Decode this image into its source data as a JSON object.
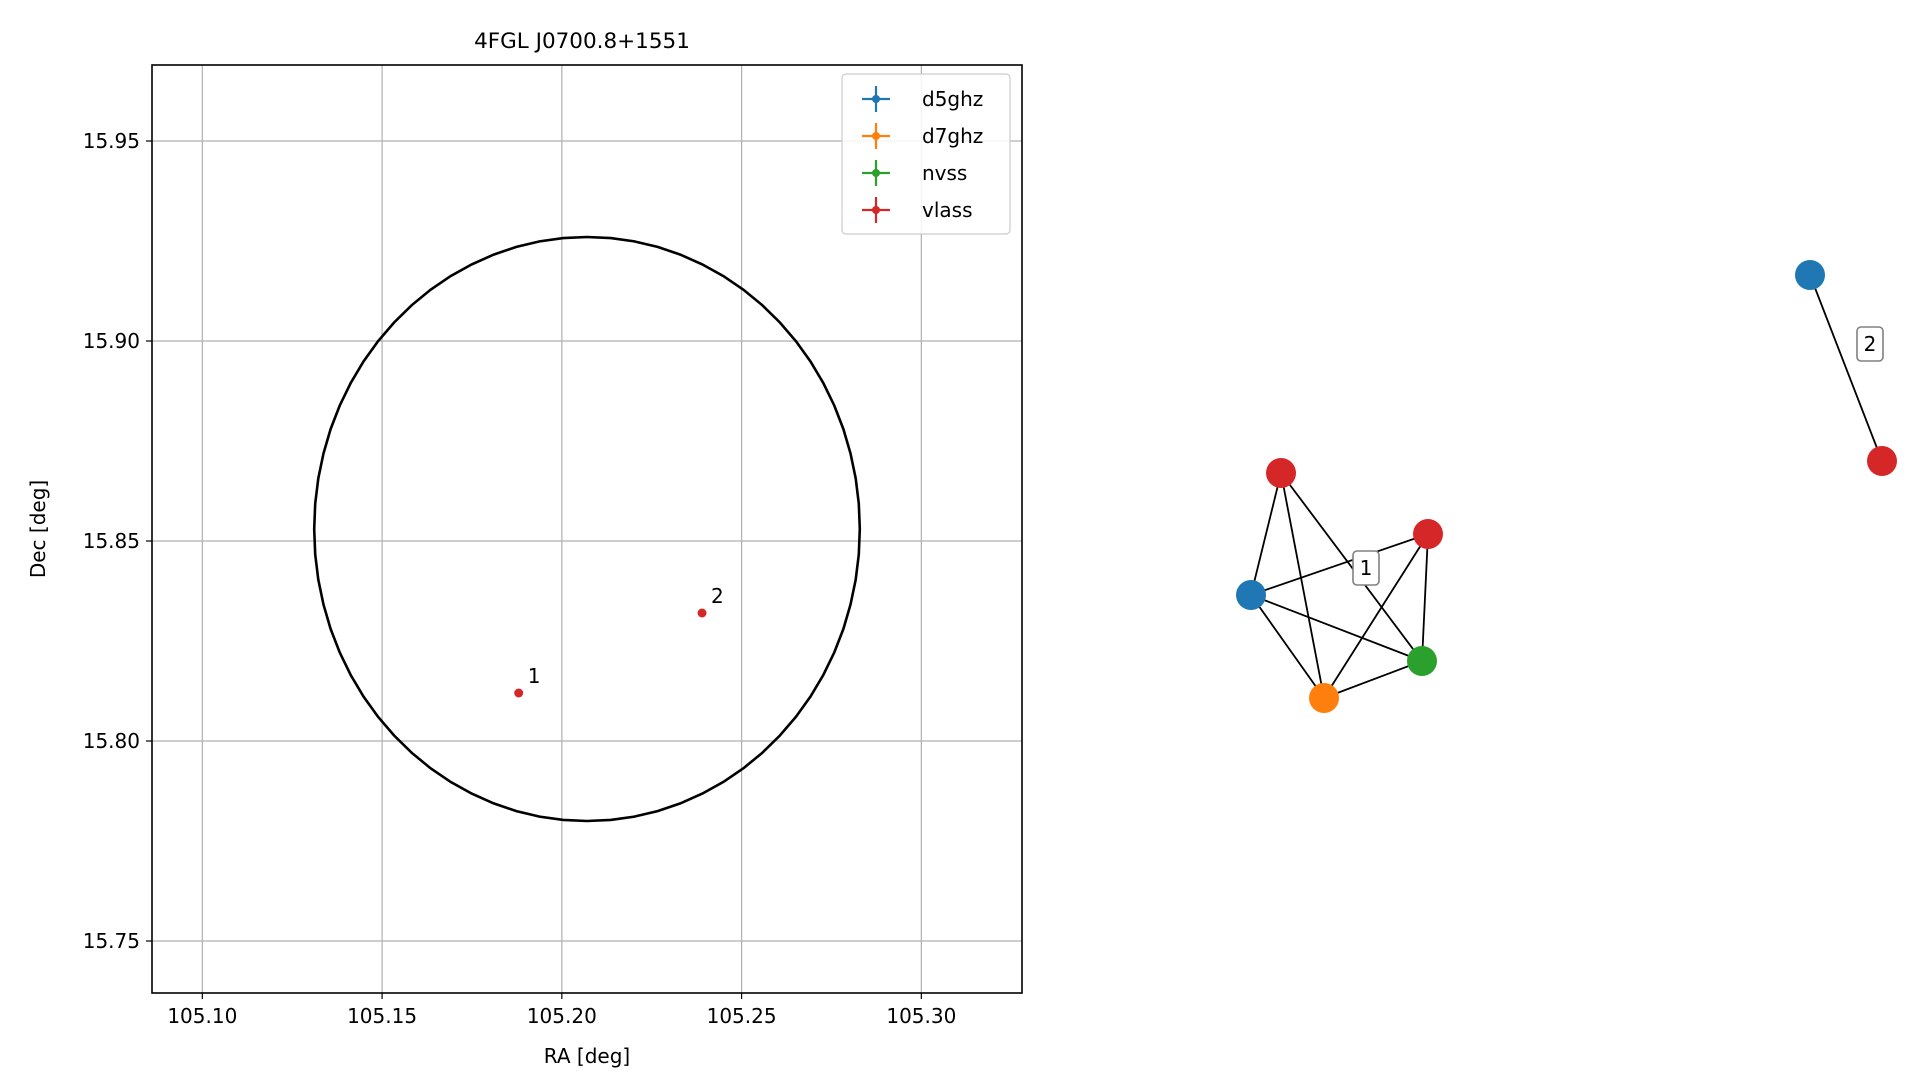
{
  "chart_data": [
    {
      "type": "scatter",
      "title": "4FGL J0700.8+1551",
      "xlabel": "RA [deg]",
      "ylabel": "Dec [deg]",
      "xlim": [
        105.086,
        105.328
      ],
      "ylim": [
        15.737,
        15.969
      ],
      "grid": true,
      "legend_position": "top-right",
      "x_ticks": [
        105.1,
        105.15,
        105.2,
        105.25,
        105.3
      ],
      "x_tick_labels": [
        "105.10",
        "105.15",
        "105.20",
        "105.25",
        "105.30"
      ],
      "y_ticks": [
        15.75,
        15.8,
        15.85,
        15.9,
        15.95
      ],
      "y_tick_labels": [
        "15.75",
        "15.80",
        "15.85",
        "15.90",
        "15.95"
      ],
      "error_circle": {
        "center_ra": 105.207,
        "center_dec": 15.853,
        "radius_deg": 0.073
      },
      "series": [
        {
          "name": "d5ghz",
          "color": "#1f77b4",
          "points": []
        },
        {
          "name": "d7ghz",
          "color": "#ff7f0e",
          "points": []
        },
        {
          "name": "nvss",
          "color": "#2ca02c",
          "points": []
        },
        {
          "name": "vlass",
          "color": "#d62728",
          "points": [
            {
              "x": 105.188,
              "y": 15.812,
              "label": "1"
            },
            {
              "x": 105.239,
              "y": 15.832,
              "label": "2"
            }
          ]
        }
      ]
    },
    {
      "type": "network",
      "nodes": [
        {
          "id": "a",
          "color": "#d62728"
        },
        {
          "id": "b",
          "color": "#d62728"
        },
        {
          "id": "c",
          "color": "#1f77b4"
        },
        {
          "id": "d",
          "color": "#2ca02c"
        },
        {
          "id": "e",
          "color": "#ff7f0e"
        },
        {
          "id": "f",
          "color": "#1f77b4"
        },
        {
          "id": "g",
          "color": "#d62728"
        }
      ],
      "edges": [
        [
          "a",
          "c"
        ],
        [
          "a",
          "e"
        ],
        [
          "a",
          "d"
        ],
        [
          "c",
          "b"
        ],
        [
          "c",
          "e"
        ],
        [
          "c",
          "d"
        ],
        [
          "b",
          "e"
        ],
        [
          "b",
          "d"
        ],
        [
          "e",
          "d"
        ],
        [
          "f",
          "g"
        ]
      ],
      "group_labels": [
        "1",
        "2"
      ]
    }
  ]
}
